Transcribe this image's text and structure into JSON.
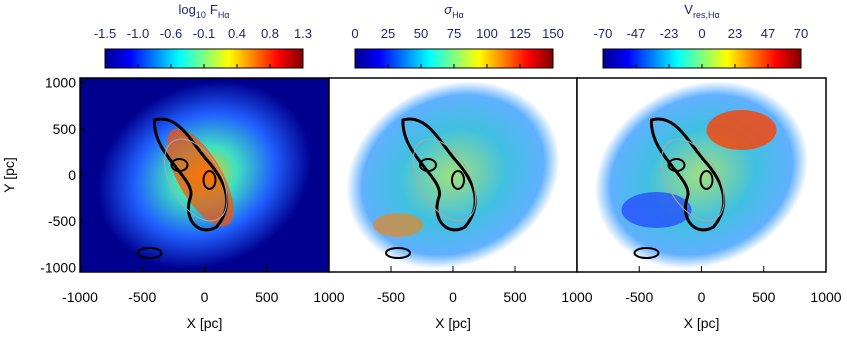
{
  "chart_data": [
    {
      "type": "image",
      "colorbar_label": [
        {
          "text": "log"
        },
        {
          "text": "10",
          "sub": true
        },
        {
          "text": "F"
        },
        {
          "text": "Hα",
          "sub": true
        }
      ],
      "clim": [
        -1.5,
        1.3
      ],
      "cticks": [
        -1.5,
        {
          "value": -1.0333,
          "label": "-1.0"
        },
        {
          "value": -0.5667,
          "label": "-0.6"
        },
        -0.1,
        {
          "value": 0.3667,
          "label": "0.4"
        },
        {
          "value": 0.8333,
          "label": "0.8"
        },
        1.3
      ],
      "colormap": [
        "#00008f",
        "#0000ff",
        "#0080ff",
        "#00ffff",
        "#80ff80",
        "#ffff00",
        "#ff8000",
        "#ff0000",
        "#800000"
      ],
      "xlim": [
        -1000,
        1000
      ],
      "ylim": [
        -1050,
        1050
      ],
      "xticks": [
        {
          "value": -1000,
          "label": "-1000"
        },
        -500,
        0,
        500,
        1000
      ],
      "yticks": [
        1000,
        500,
        0,
        -500,
        -1000
      ],
      "xlabel": "X  [pc]",
      "ylabel": "Y  [pc]"
    },
    {
      "type": "image",
      "colorbar_label": [
        {
          "text": "σ",
          "italic": true
        },
        {
          "text": "Hα",
          "sub": true
        }
      ],
      "clim": [
        0,
        150
      ],
      "cticks": [
        0,
        25,
        50,
        75,
        100,
        125,
        150
      ],
      "colormap": [
        "#00008f",
        "#0000ff",
        "#0080ff",
        "#00ffff",
        "#80ff80",
        "#ffff00",
        "#ff8000",
        "#ff0000",
        "#800000"
      ],
      "xlim": [
        -1000,
        1000
      ],
      "ylim": [
        -1050,
        1050
      ],
      "xticks": [
        -500,
        0,
        500,
        1000
      ],
      "xlabel": "X  [pc]"
    },
    {
      "type": "image",
      "colorbar_label": [
        {
          "text": "V"
        },
        {
          "text": "res,Hα",
          "sub": true
        }
      ],
      "clim": [
        -70,
        70
      ],
      "cticks": [
        -70,
        {
          "value": -46.667,
          "label": "-47"
        },
        {
          "value": -23.333,
          "label": "-23"
        },
        0,
        {
          "value": 23.333,
          "label": "23"
        },
        {
          "value": 46.667,
          "label": "47"
        },
        70
      ],
      "colormap": [
        "#00008f",
        "#0000ff",
        "#0080ff",
        "#00ffff",
        "#80ff80",
        "#ffff00",
        "#ff8000",
        "#ff0000",
        "#800000"
      ],
      "xlim": [
        -1000,
        1000
      ],
      "ylim": [
        -1050,
        1050
      ],
      "xticks": [
        -500,
        0,
        500,
        1000
      ],
      "xlabel": "X  [pc]"
    }
  ]
}
